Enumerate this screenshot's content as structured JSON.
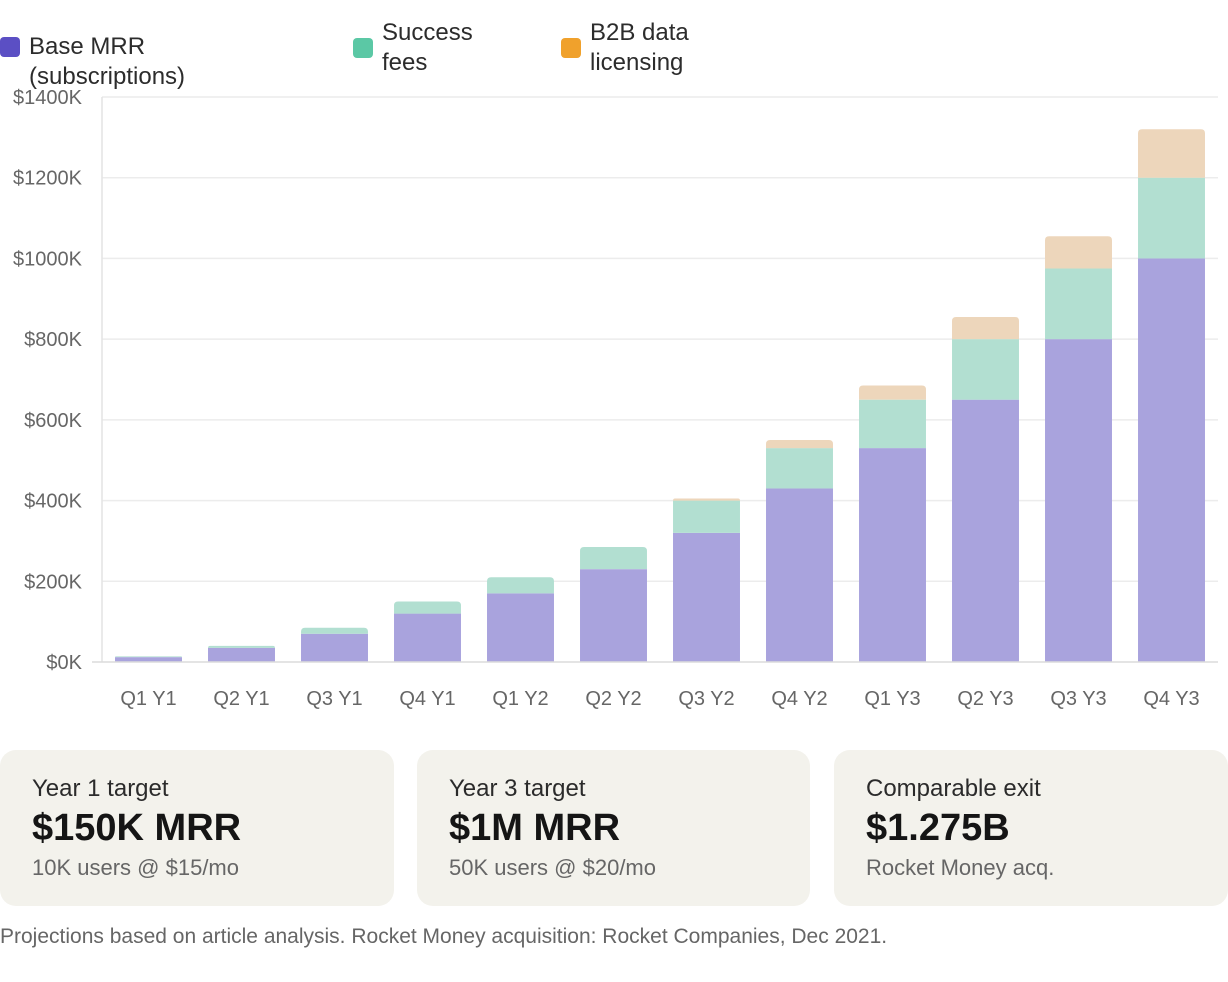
{
  "chart_data": {
    "type": "bar",
    "stacked": true,
    "categories": [
      "Q1 Y1",
      "Q2 Y1",
      "Q3 Y1",
      "Q4 Y1",
      "Q1 Y2",
      "Q2 Y2",
      "Q3 Y2",
      "Q4 Y2",
      "Q1 Y3",
      "Q2 Y3",
      "Q3 Y3",
      "Q4 Y3"
    ],
    "series": [
      {
        "name": "Base MRR (subscriptions)",
        "color": "#5b4fc4",
        "bar_color": "#a9a3dd",
        "values": [
          12,
          35,
          70,
          120,
          170,
          230,
          320,
          430,
          530,
          650,
          800,
          1000
        ]
      },
      {
        "name": "Success fees",
        "color": "#5bc8a5",
        "bar_color": "#b2dfd1",
        "values": [
          2,
          5,
          15,
          30,
          40,
          55,
          80,
          100,
          120,
          150,
          175,
          200
        ]
      },
      {
        "name": "B2B data licensing",
        "color": "#f0a12c",
        "bar_color": "#edd6bb",
        "values": [
          0,
          0,
          0,
          0,
          0,
          0,
          5,
          20,
          35,
          55,
          80,
          120
        ]
      }
    ],
    "yticks": [
      "$0K",
      "$200K",
      "$400K",
      "$600K",
      "$800K",
      "$1000K",
      "$1200K",
      "$1400K"
    ],
    "ylim": [
      0,
      1400
    ],
    "ytick_step": 200,
    "title": "",
    "xlabel": "",
    "ylabel": "",
    "grid": true,
    "legend_position": "top-left"
  },
  "cards": [
    {
      "label": "Year 1 target",
      "value": "$150K MRR",
      "sub": "10K users @ $15/mo"
    },
    {
      "label": "Year 3 target",
      "value": "$1M MRR",
      "sub": "50K users @ $20/mo"
    },
    {
      "label": "Comparable exit",
      "value": "$1.275B",
      "sub": "Rocket Money acq."
    }
  ],
  "footnote": "Projections based on article analysis. Rocket Money acquisition: Rocket Companies, Dec 2021."
}
